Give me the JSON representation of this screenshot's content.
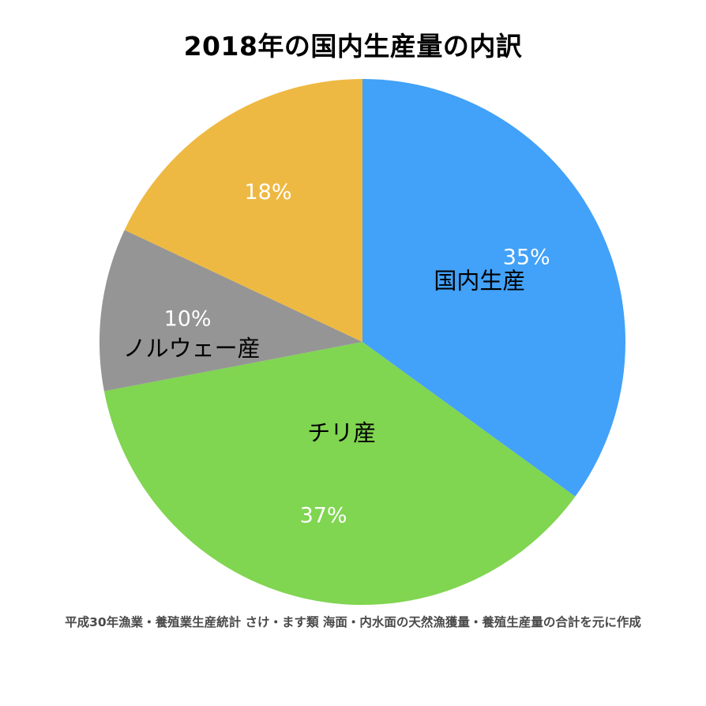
{
  "chart_data": {
    "type": "pie",
    "title": "2018年の国内生産量の内訳",
    "slices": [
      {
        "label": "国内生産",
        "value": 35,
        "value_label": "35%",
        "color": "#42A1F8"
      },
      {
        "label": "チリ産",
        "value": 37,
        "value_label": "37%",
        "color": "#80D551"
      },
      {
        "label": "ノルウェー産",
        "value": 10,
        "value_label": "10%",
        "color": "#959595"
      },
      {
        "label": "",
        "value": 18,
        "value_label": "18%",
        "color": "#EEB942"
      }
    ],
    "start_angle_deg": 0,
    "direction": "clockwise",
    "legend": "none"
  },
  "source": "平成30年漁業・養殖業生産統計 さけ・ます類 海面・内水面の天然漁獲量・養殖生産量の合計を元に作成"
}
